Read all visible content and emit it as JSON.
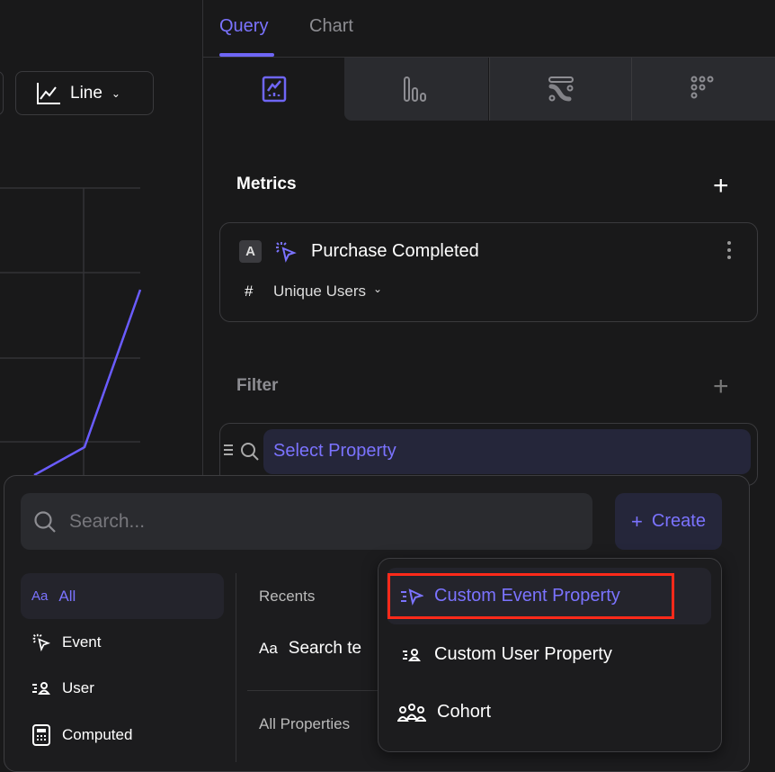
{
  "toolbar": {
    "chart_type_label": "Line"
  },
  "tabs": [
    {
      "label": "Query",
      "active": true
    },
    {
      "label": "Chart",
      "active": false
    }
  ],
  "view_tabs": [
    {
      "icon": "line-chart-icon",
      "active": true
    },
    {
      "icon": "bar-chart-icon"
    },
    {
      "icon": "flow-icon"
    },
    {
      "icon": "dots-grid-icon"
    }
  ],
  "metrics": {
    "title": "Metrics",
    "items": [
      {
        "badge": "A",
        "event": "Purchase Completed",
        "measure_symbol": "#",
        "measure": "Unique Users"
      }
    ]
  },
  "filter": {
    "title": "Filter",
    "select_label": "Select Property"
  },
  "dropdown": {
    "search_placeholder": "Search...",
    "create_label": "Create",
    "categories": [
      {
        "icon": "Aa",
        "label": "All",
        "active": true
      },
      {
        "label": "Event"
      },
      {
        "label": "User"
      },
      {
        "label": "Computed"
      }
    ],
    "recents_label": "Recents",
    "recent_item": "Search te",
    "recent_item_icon": "Aa",
    "all_properties_label": "All Properties"
  },
  "create_menu": {
    "items": [
      {
        "label": "Custom Event Property",
        "highlighted": true
      },
      {
        "label": "Custom User Property"
      },
      {
        "label": "Cohort"
      }
    ]
  },
  "colors": {
    "accent": "#7b73ff",
    "background": "#19191a",
    "highlight_box": "#ff2a1a"
  }
}
